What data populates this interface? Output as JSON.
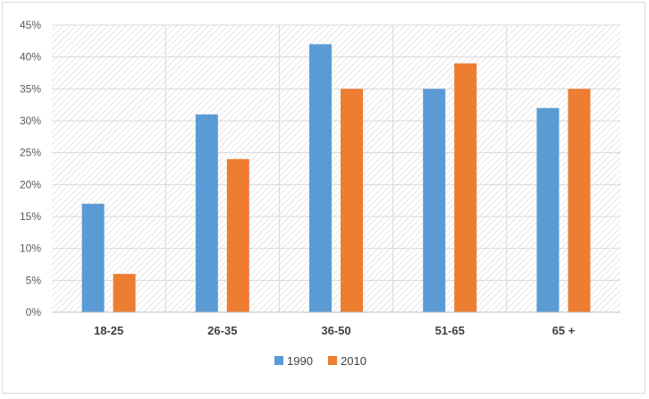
{
  "chart_data": {
    "type": "bar",
    "categories": [
      "18-25",
      "26-35",
      "36-50",
      "51-65",
      "65 +"
    ],
    "series": [
      {
        "name": "1990",
        "values": [
          17,
          31,
          42,
          35,
          32
        ],
        "color": "#5b9bd5"
      },
      {
        "name": "2010",
        "values": [
          6,
          24,
          35,
          39,
          35
        ],
        "color": "#ed7d31"
      }
    ],
    "title": "",
    "xlabel": "",
    "ylabel": "",
    "ylim": [
      0,
      45
    ],
    "yticks": [
      "0%",
      "5%",
      "10%",
      "15%",
      "20%",
      "25%",
      "30%",
      "35%",
      "40%",
      "45%"
    ],
    "grid": true,
    "plot_background": "hatched",
    "legend_position": "bottom"
  }
}
